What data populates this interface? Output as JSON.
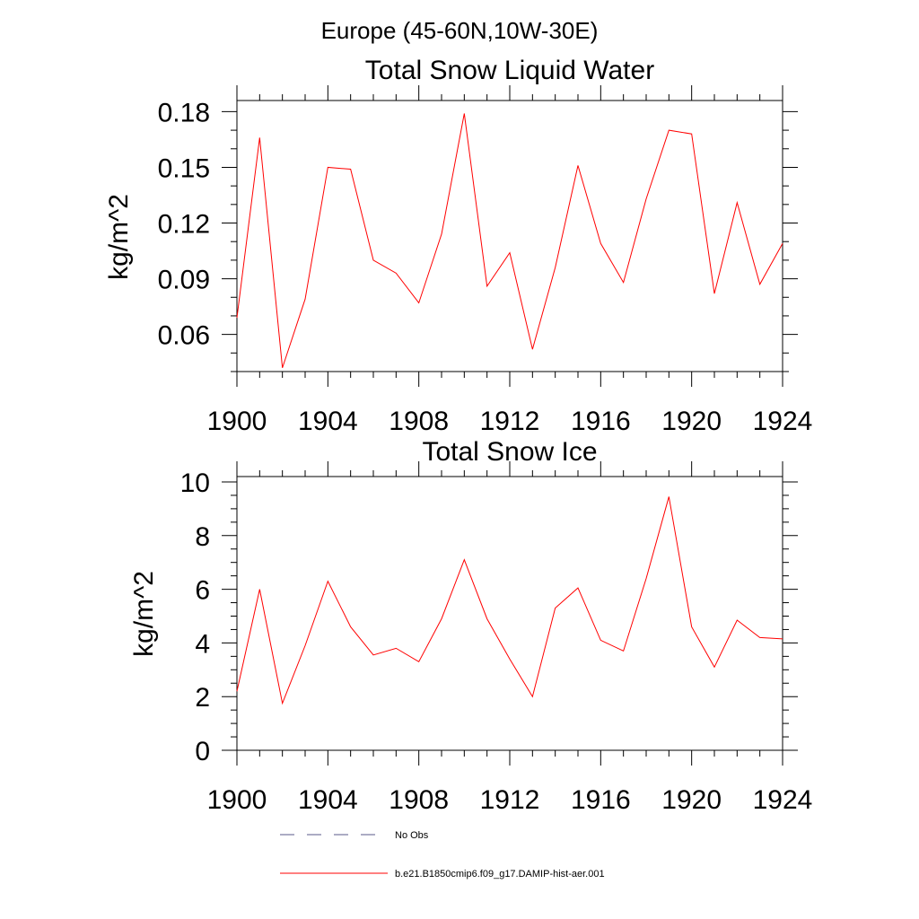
{
  "figure": {
    "title": "Europe (45-60N,10W-30E)"
  },
  "chart_data": [
    {
      "type": "line",
      "title": "Total Snow Liquid Water",
      "xlabel": "",
      "ylabel": "kg/m^2",
      "xlim": [
        1900,
        1924
      ],
      "ylim": [
        0.04,
        0.186
      ],
      "xticks": [
        1900,
        1904,
        1908,
        1912,
        1916,
        1920,
        1924
      ],
      "xtick_labels": [
        "1900",
        "1904",
        "1908",
        "1912",
        "1916",
        "1920",
        "1924"
      ],
      "yticks": [
        0.06,
        0.09,
        0.12,
        0.15,
        0.18
      ],
      "ytick_labels": [
        "0.06",
        "0.09",
        "0.12",
        "0.15",
        "0.18"
      ],
      "x": [
        1900,
        1901,
        1902,
        1903,
        1904,
        1905,
        1906,
        1907,
        1908,
        1909,
        1910,
        1911,
        1912,
        1913,
        1914,
        1915,
        1916,
        1917,
        1918,
        1919,
        1920,
        1921,
        1922,
        1923,
        1924
      ],
      "series": [
        {
          "name": "b.e21.B1850cmip6.f09_g17.DAMIP-hist-aer.001",
          "color": "#ff0000",
          "values": [
            0.069,
            0.166,
            0.042,
            0.079,
            0.15,
            0.149,
            0.1,
            0.093,
            0.077,
            0.114,
            0.179,
            0.086,
            0.104,
            0.052,
            0.096,
            0.151,
            0.109,
            0.088,
            0.133,
            0.17,
            0.168,
            0.082,
            0.131,
            0.087,
            0.109
          ]
        }
      ]
    },
    {
      "type": "line",
      "title": "Total Snow Ice",
      "xlabel": "",
      "ylabel": "kg/m^2",
      "xlim": [
        1900,
        1924
      ],
      "ylim": [
        0,
        10.2
      ],
      "xticks": [
        1900,
        1904,
        1908,
        1912,
        1916,
        1920,
        1924
      ],
      "xtick_labels": [
        "1900",
        "1904",
        "1908",
        "1912",
        "1916",
        "1920",
        "1924"
      ],
      "yticks": [
        0,
        2,
        4,
        6,
        8,
        10
      ],
      "ytick_labels": [
        "0",
        "2",
        "4",
        "6",
        "8",
        "10"
      ],
      "x": [
        1900,
        1901,
        1902,
        1903,
        1904,
        1905,
        1906,
        1907,
        1908,
        1909,
        1910,
        1911,
        1912,
        1913,
        1914,
        1915,
        1916,
        1917,
        1918,
        1919,
        1920,
        1921,
        1922,
        1923,
        1924
      ],
      "series": [
        {
          "name": "b.e21.B1850cmip6.f09_g17.DAMIP-hist-aer.001",
          "color": "#ff0000",
          "values": [
            2.2,
            6.0,
            1.75,
            3.9,
            6.3,
            4.6,
            3.55,
            3.8,
            3.3,
            4.9,
            7.1,
            4.9,
            3.4,
            2.0,
            5.3,
            6.05,
            4.1,
            3.7,
            6.4,
            9.45,
            4.6,
            3.1,
            4.85,
            4.2,
            4.15
          ]
        }
      ]
    }
  ],
  "legend": {
    "items": [
      {
        "label": "No Obs",
        "color": "#5a5a8a",
        "style": "dashed"
      },
      {
        "label": "b.e21.B1850cmip6.f09_g17.DAMIP-hist-aer.001",
        "color": "#ff0000",
        "style": "solid"
      }
    ]
  }
}
